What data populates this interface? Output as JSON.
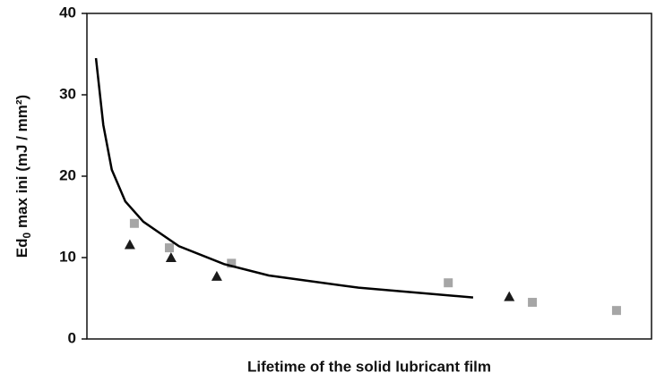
{
  "chart_data": {
    "type": "scatter",
    "xlabel": "Lifetime of the solid lubricant film",
    "ylabel": [
      "Ed",
      "0",
      " max ini (mJ / mm²)"
    ],
    "xlim": [
      0,
      100
    ],
    "ylim": [
      0,
      40
    ],
    "yticks": [
      0,
      10,
      20,
      30,
      40
    ],
    "series": [
      {
        "marker": "square",
        "color": "#a6a6a6",
        "x": [
          8.4,
          14.6,
          25.6,
          64.0,
          78.9,
          93.8
        ],
        "values": [
          14.2,
          11.2,
          9.3,
          6.9,
          4.5,
          3.5
        ]
      },
      {
        "marker": "triangle",
        "color": "#1a1a1a",
        "x": [
          7.6,
          14.9,
          23.0,
          74.8
        ],
        "values": [
          11.6,
          10.0,
          7.7,
          5.2
        ]
      },
      {
        "marker": "line",
        "color": "#000000",
        "x": [
          1.6,
          2.9,
          4.4,
          6.8,
          10.0,
          16.3,
          24.3,
          32.2,
          48.1,
          68.4
        ],
        "values": [
          34.5,
          26.3,
          20.8,
          16.9,
          14.4,
          11.4,
          9.2,
          7.8,
          6.3,
          5.1
        ]
      }
    ]
  }
}
